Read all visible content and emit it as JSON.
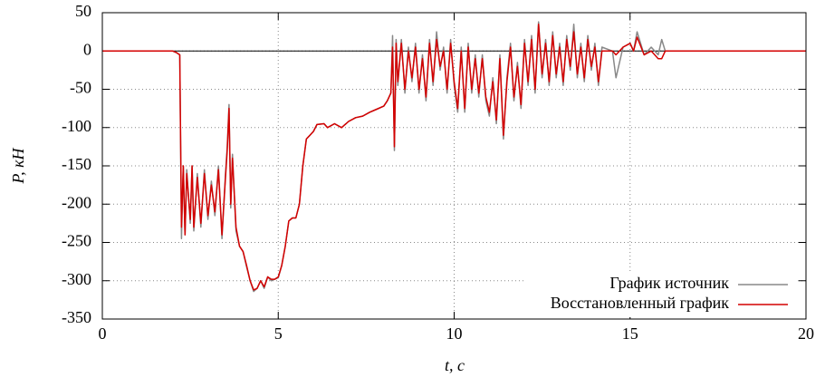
{
  "chart_data": {
    "type": "line",
    "xlabel": "t, c",
    "ylabel": "P, кН",
    "xlim": [
      0,
      20
    ],
    "ylim": [
      -350,
      50
    ],
    "xticks": [
      0,
      5,
      10,
      15,
      20
    ],
    "yticks": [
      50,
      0,
      -50,
      -100,
      -150,
      -200,
      -250,
      -300,
      -350
    ],
    "grid": true,
    "legend": "lower right",
    "x": [
      0,
      2,
      2.1,
      2.2,
      2.25,
      2.3,
      2.35,
      2.4,
      2.5,
      2.55,
      2.6,
      2.7,
      2.8,
      2.9,
      3,
      3.1,
      3.2,
      3.3,
      3.4,
      3.5,
      3.55,
      3.6,
      3.65,
      3.7,
      3.8,
      3.9,
      4,
      4.1,
      4.2,
      4.3,
      4.4,
      4.5,
      4.6,
      4.7,
      4.8,
      4.9,
      5,
      5.1,
      5.2,
      5.3,
      5.4,
      5.5,
      5.6,
      5.7,
      5.8,
      5.9,
      6,
      6.1,
      6.3,
      6.4,
      6.6,
      6.8,
      7,
      7.2,
      7.4,
      7.6,
      7.8,
      8,
      8.1,
      8.2,
      8.25,
      8.3,
      8.35,
      8.4,
      8.5,
      8.6,
      8.7,
      8.8,
      8.9,
      9,
      9.1,
      9.2,
      9.3,
      9.4,
      9.5,
      9.6,
      9.7,
      9.8,
      9.9,
      10,
      10.1,
      10.2,
      10.3,
      10.4,
      10.5,
      10.6,
      10.7,
      10.8,
      10.9,
      11,
      11.1,
      11.2,
      11.3,
      11.4,
      11.5,
      11.6,
      11.7,
      11.8,
      11.9,
      12,
      12.1,
      12.2,
      12.3,
      12.4,
      12.5,
      12.6,
      12.7,
      12.8,
      12.9,
      13,
      13.1,
      13.2,
      13.3,
      13.4,
      13.5,
      13.6,
      13.7,
      13.8,
      13.9,
      14,
      14.1,
      14.2,
      14.5,
      14.6,
      14.8,
      15,
      15.1,
      15.2,
      15.4,
      15.6,
      15.8,
      15.9,
      16,
      20
    ],
    "series": [
      {
        "name": "График источник",
        "color": "#888888",
        "values": [
          0,
          0,
          -2,
          -5,
          -245,
          -150,
          -240,
          -155,
          -225,
          -150,
          -235,
          -160,
          -230,
          -155,
          -220,
          -170,
          -215,
          -150,
          -245,
          -160,
          -125,
          -70,
          -205,
          -135,
          -235,
          -255,
          -262,
          -282,
          -300,
          -314,
          -310,
          -300,
          -310,
          -295,
          -300,
          -298,
          -296,
          -280,
          -255,
          -222,
          -218,
          -218,
          -200,
          -150,
          -115,
          -110,
          -105,
          -96,
          -95,
          -100,
          -95,
          -100,
          -92,
          -87,
          -85,
          -80,
          -76,
          -72,
          -65,
          -55,
          20,
          -130,
          15,
          -45,
          15,
          -55,
          5,
          -40,
          10,
          -55,
          -5,
          -65,
          15,
          -45,
          25,
          -25,
          5,
          -55,
          15,
          -45,
          -80,
          5,
          -80,
          10,
          -55,
          -5,
          -60,
          -5,
          -65,
          -85,
          -35,
          -95,
          -5,
          -115,
          -35,
          10,
          -65,
          -15,
          -75,
          15,
          -45,
          20,
          -55,
          38,
          -35,
          15,
          -45,
          25,
          -35,
          10,
          -45,
          20,
          -25,
          35,
          -35,
          10,
          -40,
          20,
          -25,
          10,
          -45,
          5,
          0,
          -35,
          5,
          10,
          0,
          25,
          -5,
          5,
          -5,
          15,
          0,
          0
        ]
      },
      {
        "name": "Восстановленный график",
        "color": "#d40000",
        "values": [
          0,
          0,
          -2,
          -5,
          -230,
          -150,
          -240,
          -160,
          -220,
          -150,
          -230,
          -165,
          -225,
          -160,
          -215,
          -175,
          -210,
          -155,
          -240,
          -165,
          -130,
          -75,
          -200,
          -140,
          -230,
          -255,
          -262,
          -280,
          -300,
          -312,
          -310,
          -300,
          -308,
          -295,
          -298,
          -298,
          -295,
          -280,
          -255,
          -222,
          -218,
          -218,
          -200,
          -150,
          -115,
          -110,
          -105,
          -96,
          -95,
          -100,
          -95,
          -100,
          -92,
          -87,
          -85,
          -80,
          -76,
          -72,
          -65,
          -55,
          5,
          -125,
          10,
          -40,
          10,
          -50,
          0,
          -35,
          5,
          -50,
          -10,
          -60,
          10,
          -40,
          15,
          -20,
          0,
          -50,
          10,
          -40,
          -75,
          0,
          -75,
          5,
          -50,
          -10,
          -55,
          -10,
          -60,
          -80,
          -40,
          -90,
          -10,
          -110,
          -40,
          5,
          -60,
          -20,
          -70,
          10,
          -40,
          15,
          -50,
          35,
          -30,
          10,
          -40,
          20,
          -30,
          5,
          -40,
          15,
          -20,
          25,
          -30,
          5,
          -35,
          15,
          -20,
          5,
          -40,
          0,
          0,
          -5,
          5,
          10,
          0,
          18,
          -5,
          0,
          -10,
          -10,
          0,
          0
        ]
      }
    ]
  }
}
